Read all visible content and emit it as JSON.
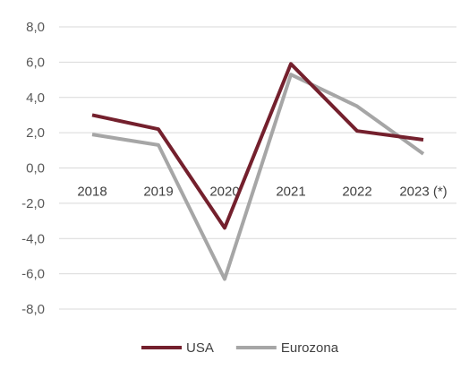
{
  "chart_data": {
    "type": "line",
    "categories": [
      "2018",
      "2019",
      "2020",
      "2021",
      "2022",
      "2023 (*)"
    ],
    "series": [
      {
        "name": "USA",
        "values": [
          3.0,
          2.2,
          -3.4,
          5.9,
          2.1,
          1.6
        ],
        "color": "#74202d"
      },
      {
        "name": "Eurozona",
        "values": [
          1.9,
          1.3,
          -6.3,
          5.3,
          3.5,
          0.8
        ],
        "color": "#a6a6a6"
      }
    ],
    "y_ticks": [
      "-8,0",
      "-6,0",
      "-4,0",
      "-2,0",
      "0,0",
      "2,0",
      "4,0",
      "6,0",
      "8,0"
    ],
    "ylim": [
      -8,
      8
    ],
    "grid": true,
    "legend_position": "bottom-center"
  }
}
